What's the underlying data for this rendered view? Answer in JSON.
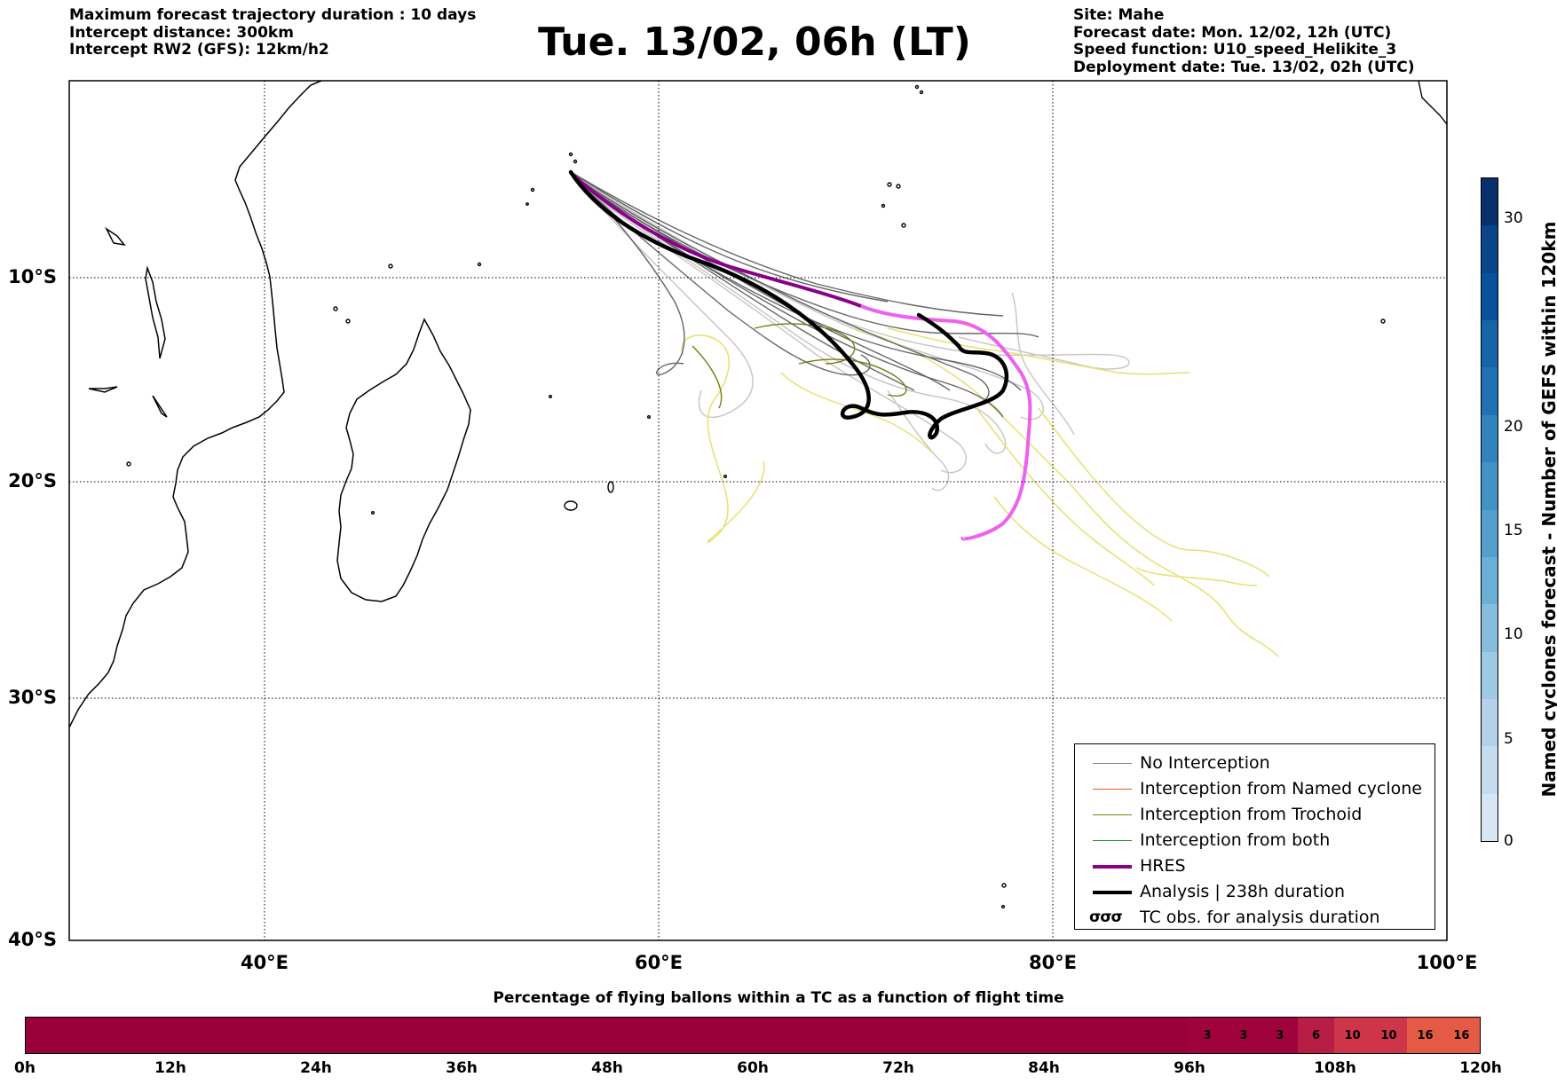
{
  "header": {
    "left": [
      "Maximum forecast trajectory duration : 10 days",
      "Intercept distance: 300km",
      "Intercept RW2 (GFS):  12km/h2"
    ],
    "title": "Tue. 13/02, 06h (LT)",
    "right": [
      "Site: Mahe",
      "Forecast date: Mon. 12/02, 12h (UTC)",
      "Speed function: U10_speed_Helikite_3",
      "Deployment date: Tue. 13/02, 02h (UTC)"
    ]
  },
  "map": {
    "lon_range": [
      30,
      100
    ],
    "lat_range": [
      -40,
      0
    ],
    "lat_labels": [
      "10°S",
      "20°S",
      "30°S",
      "40°S"
    ],
    "lon_labels": [
      "40°E",
      "60°E",
      "80°E",
      "100°E"
    ],
    "colors": {
      "no_interception": "#666666",
      "no_interception_light": "#c8c8c8",
      "trochoid": "#7a7a10",
      "hres": "#8b008b",
      "hres_late": "#ee60ee",
      "analysis": "#000000",
      "yellow_tracks": "#e8e070"
    }
  },
  "legend": {
    "items": [
      {
        "label": "No Interception",
        "color": "#808080"
      },
      {
        "label": "Interception from Named cyclone",
        "color": "#f05a20"
      },
      {
        "label": "Interception from Trochoid",
        "color": "#7a7a10"
      },
      {
        "label": "Interception from both",
        "color": "#1a9a1a"
      },
      {
        "label": "HRES",
        "color": "#8b008b"
      },
      {
        "label": "Analysis | 238h duration",
        "color": "#000000"
      }
    ],
    "tc_obs_symbol": "σσσ",
    "tc_obs_label": "TC obs. for analysis duration"
  },
  "colorbar": {
    "label": "Named cyclones forecast - Number of GEFS within 120km",
    "ticks": [
      "0",
      "5",
      "10",
      "15",
      "20",
      "30"
    ],
    "palette": [
      "#d7e5f5",
      "#c6dbef",
      "#b3d1ea",
      "#9ecae1",
      "#86bcde",
      "#6baed6",
      "#559fcd",
      "#4292c6",
      "#3282bd",
      "#2171b5",
      "#1864a9",
      "#08519c",
      "#0a4589",
      "#08306b"
    ]
  },
  "flight_bar": {
    "title": "Percentage of flying ballons within a TC as a function of flight time",
    "tick_labels": [
      "0h",
      "12h",
      "24h",
      "36h",
      "48h",
      "60h",
      "72h",
      "84h",
      "96h",
      "108h",
      "120h"
    ],
    "segments": [
      {
        "value": "",
        "span": 32,
        "color": "#9a0039"
      },
      {
        "value": "3",
        "span": 1,
        "color": "#a0023c"
      },
      {
        "value": "3",
        "span": 1,
        "color": "#a0023c"
      },
      {
        "value": "3",
        "span": 1,
        "color": "#a0023c"
      },
      {
        "value": "6",
        "span": 1,
        "color": "#b81d45"
      },
      {
        "value": "10",
        "span": 1,
        "color": "#cf3548"
      },
      {
        "value": "10",
        "span": 1,
        "color": "#cf3548"
      },
      {
        "value": "16",
        "span": 1,
        "color": "#e55a45"
      },
      {
        "value": "16",
        "span": 1,
        "color": "#e55a45"
      }
    ]
  }
}
